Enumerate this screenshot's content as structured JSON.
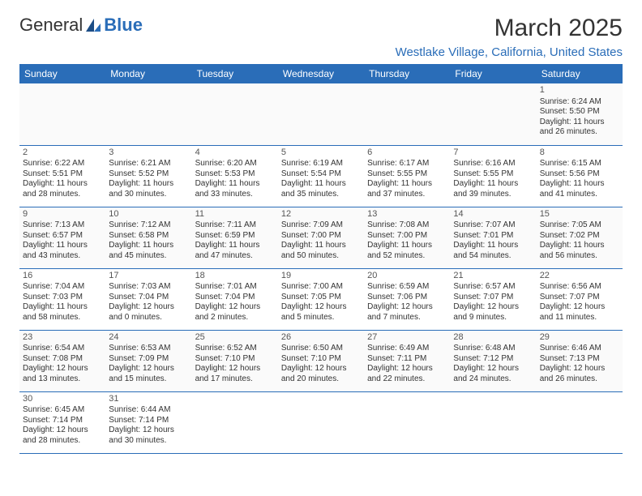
{
  "logo": {
    "text1": "General",
    "text2": "Blue"
  },
  "title": "March 2025",
  "location": "Westlake Village, California, United States",
  "colors": {
    "brand": "#2a6db8",
    "header_bg": "#2a6db8",
    "header_text": "#ffffff",
    "text": "#333333",
    "border": "#2a6db8",
    "background": "#ffffff"
  },
  "typography": {
    "title_fontsize": 30,
    "location_fontsize": 15,
    "dayheader_fontsize": 12,
    "cell_fontsize": 10
  },
  "calendar": {
    "type": "table",
    "columns": [
      "Sunday",
      "Monday",
      "Tuesday",
      "Wednesday",
      "Thursday",
      "Friday",
      "Saturday"
    ],
    "weeks": [
      [
        null,
        null,
        null,
        null,
        null,
        null,
        {
          "d": "1",
          "sr": "Sunrise: 6:24 AM",
          "ss": "Sunset: 5:50 PM",
          "dl1": "Daylight: 11 hours",
          "dl2": "and 26 minutes."
        }
      ],
      [
        {
          "d": "2",
          "sr": "Sunrise: 6:22 AM",
          "ss": "Sunset: 5:51 PM",
          "dl1": "Daylight: 11 hours",
          "dl2": "and 28 minutes."
        },
        {
          "d": "3",
          "sr": "Sunrise: 6:21 AM",
          "ss": "Sunset: 5:52 PM",
          "dl1": "Daylight: 11 hours",
          "dl2": "and 30 minutes."
        },
        {
          "d": "4",
          "sr": "Sunrise: 6:20 AM",
          "ss": "Sunset: 5:53 PM",
          "dl1": "Daylight: 11 hours",
          "dl2": "and 33 minutes."
        },
        {
          "d": "5",
          "sr": "Sunrise: 6:19 AM",
          "ss": "Sunset: 5:54 PM",
          "dl1": "Daylight: 11 hours",
          "dl2": "and 35 minutes."
        },
        {
          "d": "6",
          "sr": "Sunrise: 6:17 AM",
          "ss": "Sunset: 5:55 PM",
          "dl1": "Daylight: 11 hours",
          "dl2": "and 37 minutes."
        },
        {
          "d": "7",
          "sr": "Sunrise: 6:16 AM",
          "ss": "Sunset: 5:55 PM",
          "dl1": "Daylight: 11 hours",
          "dl2": "and 39 minutes."
        },
        {
          "d": "8",
          "sr": "Sunrise: 6:15 AM",
          "ss": "Sunset: 5:56 PM",
          "dl1": "Daylight: 11 hours",
          "dl2": "and 41 minutes."
        }
      ],
      [
        {
          "d": "9",
          "sr": "Sunrise: 7:13 AM",
          "ss": "Sunset: 6:57 PM",
          "dl1": "Daylight: 11 hours",
          "dl2": "and 43 minutes."
        },
        {
          "d": "10",
          "sr": "Sunrise: 7:12 AM",
          "ss": "Sunset: 6:58 PM",
          "dl1": "Daylight: 11 hours",
          "dl2": "and 45 minutes."
        },
        {
          "d": "11",
          "sr": "Sunrise: 7:11 AM",
          "ss": "Sunset: 6:59 PM",
          "dl1": "Daylight: 11 hours",
          "dl2": "and 47 minutes."
        },
        {
          "d": "12",
          "sr": "Sunrise: 7:09 AM",
          "ss": "Sunset: 7:00 PM",
          "dl1": "Daylight: 11 hours",
          "dl2": "and 50 minutes."
        },
        {
          "d": "13",
          "sr": "Sunrise: 7:08 AM",
          "ss": "Sunset: 7:00 PM",
          "dl1": "Daylight: 11 hours",
          "dl2": "and 52 minutes."
        },
        {
          "d": "14",
          "sr": "Sunrise: 7:07 AM",
          "ss": "Sunset: 7:01 PM",
          "dl1": "Daylight: 11 hours",
          "dl2": "and 54 minutes."
        },
        {
          "d": "15",
          "sr": "Sunrise: 7:05 AM",
          "ss": "Sunset: 7:02 PM",
          "dl1": "Daylight: 11 hours",
          "dl2": "and 56 minutes."
        }
      ],
      [
        {
          "d": "16",
          "sr": "Sunrise: 7:04 AM",
          "ss": "Sunset: 7:03 PM",
          "dl1": "Daylight: 11 hours",
          "dl2": "and 58 minutes."
        },
        {
          "d": "17",
          "sr": "Sunrise: 7:03 AM",
          "ss": "Sunset: 7:04 PM",
          "dl1": "Daylight: 12 hours",
          "dl2": "and 0 minutes."
        },
        {
          "d": "18",
          "sr": "Sunrise: 7:01 AM",
          "ss": "Sunset: 7:04 PM",
          "dl1": "Daylight: 12 hours",
          "dl2": "and 2 minutes."
        },
        {
          "d": "19",
          "sr": "Sunrise: 7:00 AM",
          "ss": "Sunset: 7:05 PM",
          "dl1": "Daylight: 12 hours",
          "dl2": "and 5 minutes."
        },
        {
          "d": "20",
          "sr": "Sunrise: 6:59 AM",
          "ss": "Sunset: 7:06 PM",
          "dl1": "Daylight: 12 hours",
          "dl2": "and 7 minutes."
        },
        {
          "d": "21",
          "sr": "Sunrise: 6:57 AM",
          "ss": "Sunset: 7:07 PM",
          "dl1": "Daylight: 12 hours",
          "dl2": "and 9 minutes."
        },
        {
          "d": "22",
          "sr": "Sunrise: 6:56 AM",
          "ss": "Sunset: 7:07 PM",
          "dl1": "Daylight: 12 hours",
          "dl2": "and 11 minutes."
        }
      ],
      [
        {
          "d": "23",
          "sr": "Sunrise: 6:54 AM",
          "ss": "Sunset: 7:08 PM",
          "dl1": "Daylight: 12 hours",
          "dl2": "and 13 minutes."
        },
        {
          "d": "24",
          "sr": "Sunrise: 6:53 AM",
          "ss": "Sunset: 7:09 PM",
          "dl1": "Daylight: 12 hours",
          "dl2": "and 15 minutes."
        },
        {
          "d": "25",
          "sr": "Sunrise: 6:52 AM",
          "ss": "Sunset: 7:10 PM",
          "dl1": "Daylight: 12 hours",
          "dl2": "and 17 minutes."
        },
        {
          "d": "26",
          "sr": "Sunrise: 6:50 AM",
          "ss": "Sunset: 7:10 PM",
          "dl1": "Daylight: 12 hours",
          "dl2": "and 20 minutes."
        },
        {
          "d": "27",
          "sr": "Sunrise: 6:49 AM",
          "ss": "Sunset: 7:11 PM",
          "dl1": "Daylight: 12 hours",
          "dl2": "and 22 minutes."
        },
        {
          "d": "28",
          "sr": "Sunrise: 6:48 AM",
          "ss": "Sunset: 7:12 PM",
          "dl1": "Daylight: 12 hours",
          "dl2": "and 24 minutes."
        },
        {
          "d": "29",
          "sr": "Sunrise: 6:46 AM",
          "ss": "Sunset: 7:13 PM",
          "dl1": "Daylight: 12 hours",
          "dl2": "and 26 minutes."
        }
      ],
      [
        {
          "d": "30",
          "sr": "Sunrise: 6:45 AM",
          "ss": "Sunset: 7:14 PM",
          "dl1": "Daylight: 12 hours",
          "dl2": "and 28 minutes."
        },
        {
          "d": "31",
          "sr": "Sunrise: 6:44 AM",
          "ss": "Sunset: 7:14 PM",
          "dl1": "Daylight: 12 hours",
          "dl2": "and 30 minutes."
        },
        null,
        null,
        null,
        null,
        null
      ]
    ]
  }
}
